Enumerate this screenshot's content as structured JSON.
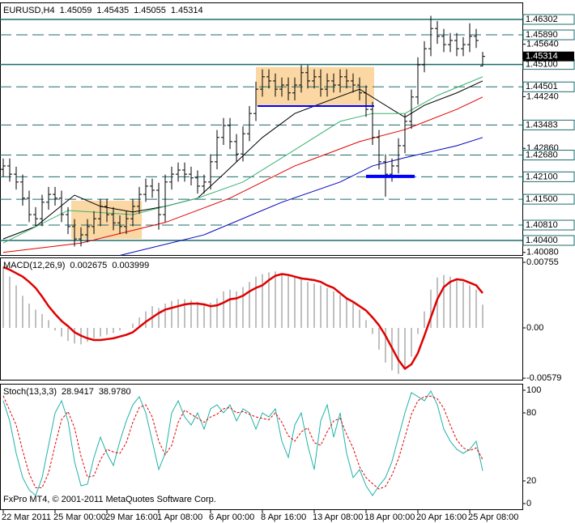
{
  "chart_data": [
    {
      "type": "ohlc",
      "title": "EURUSD,H4",
      "color": "#000000",
      "categories": [
        "22 Mar 2011",
        null,
        null,
        null,
        null,
        null,
        null,
        null,
        "25 Mar 00:00",
        null,
        null,
        null,
        null,
        null,
        null,
        null,
        "29 Mar 16:00",
        null,
        null,
        null,
        null,
        null,
        null,
        null,
        "1 Apr 08:00",
        null,
        null,
        null,
        null,
        null,
        null,
        null,
        "6 Apr 00:00",
        null,
        null,
        null,
        null,
        null,
        null,
        null,
        "8 Apr 16:00",
        null,
        null,
        null,
        null,
        null,
        null,
        null,
        "13 Apr 08:00",
        null,
        null,
        null,
        null,
        null,
        null,
        null,
        "18 Apr 00:00",
        null,
        null,
        null,
        null,
        null,
        null,
        null,
        "20 Apr 16:00",
        null,
        null,
        null,
        null,
        null,
        null,
        null,
        "25 Apr 08:00",
        null,
        null
      ],
      "open": [
        1.423,
        1.4239,
        1.4217,
        1.4196,
        1.4153,
        1.4109,
        1.4098,
        1.4142,
        1.4163,
        1.4153,
        1.4109,
        1.4077,
        1.4044,
        1.4055,
        1.4077,
        1.4098,
        1.4131,
        1.4109,
        1.4087,
        1.4077,
        1.4098,
        1.4131,
        1.4163,
        1.4185,
        1.4174,
        1.4109,
        1.4196,
        1.4217,
        1.4228,
        1.4217,
        1.4207,
        1.4185,
        1.4196,
        1.425,
        1.4315,
        1.4347,
        1.4304,
        1.4271,
        1.4325,
        1.4379,
        1.4444,
        1.4477,
        1.4466,
        1.4444,
        1.4455,
        1.4434,
        1.4455,
        1.4488,
        1.4466,
        1.4477,
        1.4444,
        1.4466,
        1.4455,
        1.4477,
        1.4466,
        1.4455,
        1.4434,
        1.439,
        1.4315,
        1.425,
        1.4217,
        1.4239,
        1.4293,
        1.4358,
        1.4423,
        1.4509,
        1.4552,
        1.4606,
        1.4585,
        1.4563,
        1.4574,
        1.4552,
        1.4563,
        1.4585,
        1.45059
      ],
      "high": [
        1.4259,
        1.4259,
        1.4237,
        1.4216,
        1.4173,
        1.4129,
        1.4162,
        1.4183,
        1.4183,
        1.4173,
        1.4129,
        1.4097,
        1.4075,
        1.4097,
        1.4118,
        1.4151,
        1.4151,
        1.4129,
        1.4107,
        1.4118,
        1.4151,
        1.4183,
        1.4205,
        1.4205,
        1.4194,
        1.4216,
        1.4237,
        1.4248,
        1.4248,
        1.4237,
        1.4227,
        1.4216,
        1.427,
        1.4335,
        1.4367,
        1.4367,
        1.4324,
        1.4345,
        1.4399,
        1.4464,
        1.4497,
        1.4497,
        1.4486,
        1.4475,
        1.4475,
        1.4475,
        1.4508,
        1.4508,
        1.4497,
        1.4497,
        1.4486,
        1.4486,
        1.4497,
        1.4497,
        1.4486,
        1.4475,
        1.4454,
        1.441,
        1.4335,
        1.427,
        1.4259,
        1.4313,
        1.4378,
        1.4443,
        1.4529,
        1.4572,
        1.464,
        1.4626,
        1.4605,
        1.4594,
        1.4594,
        1.4583,
        1.462,
        1.4605,
        1.45435
      ],
      "low": [
        1.421,
        1.4197,
        1.4176,
        1.4133,
        1.4089,
        1.4078,
        1.4078,
        1.4122,
        1.4133,
        1.4089,
        1.4057,
        1.4024,
        1.4024,
        1.4035,
        1.4057,
        1.4078,
        1.4089,
        1.4067,
        1.4057,
        1.4057,
        1.4078,
        1.4111,
        1.4143,
        1.4154,
        1.4069,
        1.4089,
        1.4176,
        1.4197,
        1.4197,
        1.4187,
        1.4165,
        1.4165,
        1.4176,
        1.423,
        1.4295,
        1.4284,
        1.4251,
        1.4251,
        1.4305,
        1.4359,
        1.4424,
        1.4446,
        1.4424,
        1.4424,
        1.4414,
        1.4414,
        1.4435,
        1.4446,
        1.4446,
        1.4424,
        1.4424,
        1.4435,
        1.4435,
        1.4446,
        1.4435,
        1.4414,
        1.437,
        1.4295,
        1.423,
        1.4157,
        1.4197,
        1.4219,
        1.4273,
        1.4338,
        1.4403,
        1.4489,
        1.4532,
        1.4565,
        1.4543,
        1.4543,
        1.4532,
        1.4532,
        1.4543,
        1.4554,
        1.45055
      ],
      "close": [
        1.4239,
        1.4217,
        1.4196,
        1.4153,
        1.4109,
        1.4098,
        1.4142,
        1.4163,
        1.4153,
        1.4109,
        1.4077,
        1.4044,
        1.4055,
        1.4077,
        1.4098,
        1.4131,
        1.4109,
        1.4087,
        1.4077,
        1.4098,
        1.4131,
        1.4163,
        1.4185,
        1.4174,
        1.4109,
        1.4196,
        1.4217,
        1.4228,
        1.4217,
        1.4207,
        1.4185,
        1.4196,
        1.425,
        1.4315,
        1.4347,
        1.4304,
        1.4271,
        1.4325,
        1.4379,
        1.4444,
        1.4477,
        1.4466,
        1.4444,
        1.4455,
        1.4434,
        1.4455,
        1.4488,
        1.4466,
        1.4477,
        1.4444,
        1.4466,
        1.4455,
        1.4477,
        1.4466,
        1.4455,
        1.4434,
        1.439,
        1.4315,
        1.425,
        1.4217,
        1.4239,
        1.4293,
        1.4358,
        1.4423,
        1.4509,
        1.4552,
        1.4606,
        1.4585,
        1.4563,
        1.4574,
        1.4552,
        1.4563,
        1.4585,
        1.4574,
        1.45314
      ],
      "ylim": [
        1.39989,
        1.46756
      ],
      "yticks": [
        {
          "value": 1.4564,
          "label": "1.45640"
        },
        {
          "value": 1.4424,
          "label": "1.44240"
        },
        {
          "value": 1.4286,
          "label": "1.42860"
        },
        {
          "value": 1.4008,
          "label": "1.40080"
        }
      ],
      "level_color": "#1e6b6b",
      "levels": [
        {
          "value": 1.46302,
          "style": "solid"
        },
        {
          "value": 1.4589,
          "label": "1.45890",
          "style": "dashed"
        },
        {
          "value": 1.451,
          "label": "1.45100",
          "style": "solid"
        },
        {
          "value": 1.44501,
          "style": "dashed"
        },
        {
          "value": 1.43483,
          "style": "dashed"
        },
        {
          "value": 1.4268,
          "label": "1.42680",
          "style": "dashed"
        },
        {
          "value": 1.421,
          "label": "1.42100",
          "style": "dashed"
        },
        {
          "value": 1.415,
          "label": "1.41500",
          "style": "dashed"
        },
        {
          "value": 1.4081,
          "label": "1.40810",
          "style": "dashed"
        },
        {
          "value": 1.404,
          "label": "1.40400",
          "style": "solid"
        }
      ],
      "lines": [
        {
          "color": "#000000",
          "x": [
            0,
            5,
            11,
            15,
            20,
            25,
            30,
            34,
            40,
            45,
            50,
            55,
            60,
            62,
            65,
            70,
            74
          ],
          "values": [
            1.4044,
            1.4077,
            1.4161,
            1.4131,
            1.4116,
            1.4131,
            1.4153,
            1.4217,
            1.4315,
            1.4379,
            1.4412,
            1.4444,
            1.439,
            1.4369,
            1.4401,
            1.4434,
            1.4466
          ]
        },
        {
          "color": "#3cb371",
          "x": [
            0,
            10,
            20,
            30,
            37,
            45,
            52,
            57,
            62,
            67,
            74
          ],
          "values": [
            1.4033,
            1.412,
            1.4109,
            1.4153,
            1.4196,
            1.4282,
            1.4358,
            1.4379,
            1.4379,
            1.4427,
            1.4477
          ]
        },
        {
          "color": "#e00000",
          "x": [
            0,
            12,
            25,
            35,
            45,
            55,
            62,
            70,
            74
          ],
          "values": [
            1.4008,
            1.4033,
            1.4088,
            1.4153,
            1.4239,
            1.4304,
            1.4336,
            1.439,
            1.4423
          ]
        },
        {
          "color": "#0000c0",
          "x": [
            18,
            31,
            43,
            52,
            57,
            62,
            70,
            74
          ],
          "values": [
            1.4,
            1.4055,
            1.4142,
            1.4196,
            1.4239,
            1.4261,
            1.4293,
            1.4315
          ]
        }
      ],
      "boxes": [
        {
          "x": [
            10.5,
            21.4
          ],
          "y": [
            1.4044,
            1.4146
          ],
          "color": "#fbd7a3"
        },
        {
          "x": [
            39,
            57.25
          ],
          "y": [
            1.4399,
            1.4503
          ],
          "color": "#fbd7a3"
        }
      ],
      "trendlines": [
        {
          "x": [
            39.25,
            57.25
          ],
          "y": [
            1.4399,
            1.4399
          ],
          "color": "#0000ff",
          "width": 2
        },
        {
          "x": [
            56,
            63.5
          ],
          "y": [
            1.4211,
            1.4211
          ],
          "color": "#0000ff",
          "width": 4
        }
      ]
    },
    {
      "type": "macd",
      "title": "MACD(12,26,9)",
      "ylim": [
        -0.00606,
        0.00811
      ],
      "yticks": [
        0.00755,
        {
          "value": 0,
          "label": "0.00"
        },
        -0.00579
      ],
      "series": [
        {
          "style": "histogram",
          "color": "#c0c0c0",
          "values": [
            0.007,
            0.0059,
            0.0049,
            0.0037,
            0.0028,
            0.0021,
            0.0016,
            0.0009,
            -0.0003,
            -0.001,
            -0.0015,
            -0.0018,
            -0.0019,
            -0.0016,
            -0.0012,
            -0.001,
            -0.0008,
            -0.0006,
            -0.0003,
            0.0,
            0.0005,
            0.0012,
            0.0019,
            0.0025,
            0.0023,
            0.0028,
            0.0031,
            0.0033,
            0.0033,
            0.0032,
            0.003,
            0.0028,
            0.0029,
            0.0034,
            0.0042,
            0.0044,
            0.0042,
            0.0047,
            0.0053,
            0.0059,
            0.0062,
            0.0064,
            0.0065,
            0.0063,
            0.0061,
            0.0059,
            0.0056,
            0.0053,
            0.0051,
            0.0049,
            0.0046,
            0.0042,
            0.0038,
            0.0034,
            0.0029,
            0.0021,
            0.0009,
            -0.0007,
            -0.0025,
            -0.004,
            -0.0049,
            -0.0053,
            -0.0047,
            -0.0033,
            -0.0007,
            0.0019,
            0.0044,
            0.0058,
            0.0061,
            0.0059,
            0.0056,
            0.0053,
            0.0049,
            0.0044,
            0.002675
          ]
        },
        {
          "style": "line",
          "color": "#e00000",
          "values": [
            0.007,
            0.0067,
            0.0063,
            0.0059,
            0.0053,
            0.0046,
            0.0036,
            0.0025,
            0.0016,
            0.0008,
            0.0002,
            -0.0005,
            -0.0009,
            -0.0012,
            -0.0014,
            -0.0014,
            -0.0013,
            -0.0012,
            -0.001,
            -0.0008,
            -0.0005,
            0.0001,
            0.0007,
            0.0012,
            0.0017,
            0.0021,
            0.0023,
            0.0025,
            0.0027,
            0.0028,
            0.0028,
            0.0027,
            0.0025,
            0.0026,
            0.0029,
            0.0033,
            0.0034,
            0.0037,
            0.0042,
            0.0046,
            0.0049,
            0.0055,
            0.006,
            0.0062,
            0.0061,
            0.0059,
            0.0057,
            0.0056,
            0.0055,
            0.0053,
            0.0049,
            0.0046,
            0.004,
            0.0034,
            0.003,
            0.0025,
            0.002,
            0.0012,
            0.0003,
            -0.0009,
            -0.0023,
            -0.0037,
            -0.0047,
            -0.0042,
            -0.0029,
            -0.0009,
            0.0012,
            0.0033,
            0.0047,
            0.0053,
            0.0056,
            0.0055,
            0.0052,
            0.0049,
            0.003999
          ]
        }
      ]
    },
    {
      "type": "stochastic",
      "title": "Stoch(13,3,3)",
      "ylim": [
        -5.7,
        105.7
      ],
      "yticks": [
        100,
        80,
        20,
        0
      ],
      "series": [
        {
          "style": "line",
          "color": "#20b2aa",
          "values": [
            90.7,
            72.9,
            44.3,
            22.9,
            12.1,
            7.1,
            22.9,
            51.4,
            80,
            90.7,
            72.9,
            37.1,
            15.7,
            17.1,
            40.7,
            58.6,
            44.3,
            33.6,
            55,
            72.9,
            87.1,
            94.3,
            80,
            55,
            30,
            44.3,
            80,
            90.7,
            76.4,
            69.3,
            80,
            65.7,
            83.6,
            87.1,
            80,
            87.1,
            72.9,
            83.6,
            80,
            65.7,
            80,
            76.4,
            83.6,
            55,
            40.7,
            69.3,
            80,
            51.4,
            30,
            72.9,
            87.1,
            58.6,
            80,
            44.3,
            22.9,
            30,
            15.7,
            7.1,
            15.7,
            22.9,
            37.1,
            58.6,
            80,
            97.9,
            94.3,
            90.7,
            99.3,
            87.1,
            65.7,
            55,
            47.9,
            44.3,
            47.9,
            55,
            28.9417
          ]
        },
        {
          "style": "dashed",
          "color": "#e00000",
          "last_value_label": "38.9780",
          "values": [
            95,
            82,
            69.3,
            46.7,
            26.4,
            14.0,
            14.0,
            27.1,
            51.4,
            74.0,
            81.2,
            66.9,
            41.9,
            23.3,
            24.5,
            38.8,
            47.9,
            45.5,
            44.3,
            53.8,
            71.7,
            84.8,
            87.1,
            76.4,
            55,
            43.1,
            51.4,
            71.7,
            82.4,
            78.8,
            75.2,
            71.7,
            76.4,
            78.8,
            83.6,
            84.7,
            80,
            81.2,
            78.8,
            76.4,
            75.2,
            74.0,
            80,
            71.7,
            59.8,
            55,
            63.3,
            66.9,
            53.8,
            51.4,
            63.3,
            72.9,
            75.2,
            61,
            49.1,
            32.4,
            22.9,
            17.6,
            12.8,
            15.2,
            25.2,
            39.5,
            58.6,
            78.8,
            90.7,
            94.3,
            94.8,
            92.4,
            84,
            69.3,
            56.2,
            49.1,
            46.7,
            49.1,
            38.978
          ]
        }
      ]
    }
  ],
  "footer": "FxPro MT4, © 2001-2011 MetaQuotes Software Corp."
}
